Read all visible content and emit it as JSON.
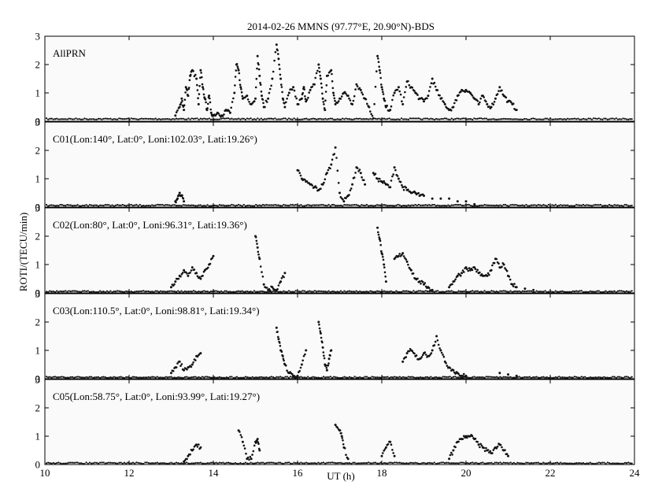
{
  "chart_data": {
    "type": "scatter",
    "title": "2014-02-26  MMNS (97.77°E, 20.90°N)-BDS",
    "xlabel": "UT (h)",
    "ylabel": "ROTI/(TECU/min)",
    "xlim": [
      10,
      24
    ],
    "ylim": [
      0,
      3
    ],
    "x_ticks": [
      10,
      12,
      14,
      16,
      18,
      20,
      22,
      24
    ],
    "y_ticks": [
      0,
      1,
      2,
      3
    ],
    "point_color": "#111111",
    "panels": [
      {
        "label": "AllPRN",
        "series": [
          {
            "baseline": 0.08,
            "x": [
              13.1,
              13.2,
              13.25,
              13.3,
              13.35,
              13.4,
              13.45,
              13.5,
              13.6,
              13.65,
              13.7,
              13.75,
              13.8,
              13.85,
              13.9,
              13.95,
              14.0,
              14.1,
              14.2,
              14.3,
              14.4,
              14.5,
              14.55,
              14.6,
              14.65,
              14.7,
              14.8,
              14.9,
              15.0,
              15.05,
              15.1,
              15.15,
              15.2,
              15.3,
              15.4,
              15.5,
              15.55,
              15.6,
              15.65,
              15.7,
              15.8,
              15.9,
              16.0,
              16.1,
              16.15,
              16.2,
              16.3,
              16.4,
              16.5,
              16.55,
              16.6,
              16.65,
              16.7,
              16.8,
              16.85,
              16.9,
              17.0,
              17.1,
              17.2,
              17.3,
              17.4,
              17.5,
              17.6,
              17.7,
              17.8,
              17.9,
              17.95,
              18.0,
              18.05,
              18.1,
              18.2,
              18.3,
              18.4,
              18.5,
              18.6,
              18.7,
              18.8,
              18.9,
              19.0,
              19.1,
              19.2,
              19.3,
              19.4,
              19.5,
              19.6,
              19.7,
              19.8,
              19.9,
              20.0,
              20.1,
              20.2,
              20.3,
              20.4,
              20.5,
              20.6,
              20.7,
              20.8,
              20.9,
              21.0,
              21.1,
              21.2
            ],
            "y": [
              0.2,
              0.5,
              0.8,
              0.4,
              1.2,
              0.9,
              1.6,
              1.8,
              1.5,
              0.6,
              1.8,
              1.2,
              0.8,
              0.4,
              0.9,
              0.3,
              0.2,
              0.3,
              0.2,
              0.4,
              0.3,
              1.0,
              2.0,
              1.8,
              1.2,
              0.8,
              0.9,
              0.6,
              0.8,
              2.3,
              1.6,
              0.9,
              0.5,
              0.8,
              1.5,
              2.7,
              2.2,
              1.5,
              0.8,
              0.5,
              1.0,
              1.2,
              0.6,
              0.8,
              1.2,
              0.7,
              1.1,
              1.3,
              2.0,
              1.5,
              0.8,
              0.4,
              1.6,
              1.8,
              1.0,
              0.6,
              0.8,
              1.0,
              0.9,
              0.6,
              1.3,
              1.1,
              0.8,
              0.5,
              0.1,
              2.3,
              1.8,
              1.2,
              0.8,
              0.5,
              0.4,
              1.0,
              1.2,
              0.6,
              1.4,
              1.2,
              1.0,
              0.8,
              0.7,
              0.9,
              1.5,
              1.1,
              0.8,
              0.6,
              0.4,
              0.5,
              0.9,
              1.1,
              1.1,
              1.0,
              0.8,
              0.6,
              0.9,
              0.6,
              0.5,
              0.8,
              1.2,
              0.9,
              0.7,
              0.6,
              0.4
            ]
          }
        ]
      },
      {
        "label": "C01(Lon:140°, Lat:0°, Loni:102.03°, Lati:19.26°)",
        "series": [
          {
            "baseline": 0.06,
            "x": [
              13.1,
              13.15,
              13.2,
              13.25,
              13.3,
              16.0,
              16.1,
              16.2,
              16.3,
              16.4,
              16.5,
              16.6,
              16.7,
              16.8,
              16.9,
              17.0,
              17.1,
              17.2,
              17.3,
              17.4,
              17.5,
              17.6,
              17.8,
              17.9,
              18.0,
              18.1,
              18.2,
              18.3,
              18.4,
              18.5,
              18.6,
              18.7,
              18.8,
              18.9,
              19.0,
              19.2,
              19.4,
              19.6,
              19.8,
              20.0,
              20.2
            ],
            "y": [
              0.2,
              0.3,
              0.5,
              0.4,
              0.2,
              1.3,
              1.0,
              0.9,
              0.8,
              0.7,
              0.6,
              0.8,
              1.2,
              1.5,
              2.1,
              0.5,
              0.2,
              0.4,
              0.8,
              1.4,
              1.2,
              0.8,
              1.2,
              1.0,
              0.9,
              0.8,
              0.7,
              1.4,
              1.0,
              0.7,
              0.6,
              0.5,
              0.5,
              0.4,
              0.4,
              0.3,
              0.3,
              0.3,
              0.2,
              0.2,
              0.1
            ]
          }
        ]
      },
      {
        "label": "C02(Lon:80°, Lat:0°, Loni:96.31°, Lati:19.36°)",
        "series": [
          {
            "baseline": 0.05,
            "x": [
              13.0,
              13.1,
              13.2,
              13.3,
              13.4,
              13.5,
              13.6,
              13.7,
              13.8,
              13.9,
              14.0,
              15.0,
              15.05,
              15.1,
              15.2,
              15.3,
              15.4,
              15.5,
              15.6,
              15.7,
              17.9,
              17.95,
              18.0,
              18.05,
              18.1,
              18.3,
              18.4,
              18.5,
              18.6,
              18.7,
              18.8,
              18.9,
              19.0,
              19.1,
              19.2,
              19.6,
              19.7,
              19.8,
              19.9,
              20.0,
              20.1,
              20.2,
              20.3,
              20.4,
              20.5,
              20.6,
              20.7,
              20.8,
              20.9,
              21.0,
              21.1,
              21.2,
              21.4,
              21.6
            ],
            "y": [
              0.2,
              0.4,
              0.6,
              0.8,
              0.6,
              0.9,
              0.7,
              0.5,
              0.8,
              1.0,
              1.3,
              2.0,
              1.6,
              1.2,
              0.3,
              0.1,
              0.2,
              0.1,
              0.4,
              0.7,
              2.3,
              1.9,
              1.4,
              1.0,
              0.4,
              1.2,
              1.3,
              1.4,
              1.1,
              0.8,
              0.5,
              0.4,
              0.3,
              0.2,
              0.1,
              0.2,
              0.4,
              0.6,
              0.7,
              0.9,
              0.8,
              0.9,
              0.7,
              0.6,
              0.6,
              0.8,
              1.2,
              0.9,
              1.0,
              0.6,
              0.3,
              0.2,
              0.15,
              0.1
            ]
          }
        ]
      },
      {
        "label": "C03(Lon:110.5°, Lat:0°, Loni:98.81°, Lati:19.34°)",
        "series": [
          {
            "baseline": 0.05,
            "x": [
              13.0,
              13.1,
              13.2,
              13.3,
              13.4,
              13.5,
              13.6,
              13.7,
              15.5,
              15.55,
              15.6,
              15.65,
              15.7,
              15.8,
              15.9,
              16.0,
              16.1,
              16.2,
              16.5,
              16.55,
              16.6,
              16.65,
              16.7,
              16.75,
              16.8,
              18.5,
              18.6,
              18.7,
              18.8,
              18.9,
              19.0,
              19.1,
              19.2,
              19.3,
              19.4,
              19.5,
              19.6,
              19.7,
              19.8,
              19.9,
              20.0,
              20.8,
              21.0,
              21.2
            ],
            "y": [
              0.2,
              0.4,
              0.6,
              0.3,
              0.4,
              0.5,
              0.8,
              0.9,
              1.8,
              1.4,
              1.0,
              0.8,
              0.5,
              0.2,
              0.1,
              0.1,
              0.5,
              1.0,
              2.0,
              1.6,
              1.1,
              0.5,
              0.3,
              0.7,
              1.0,
              0.6,
              0.9,
              1.0,
              0.8,
              0.7,
              0.9,
              0.8,
              1.0,
              1.5,
              1.0,
              0.6,
              0.4,
              0.3,
              0.2,
              0.1,
              0.1,
              0.2,
              0.15,
              0.1
            ]
          }
        ]
      },
      {
        "label": "C05(Lon:58.75°, Lat:0°, Loni:93.99°, Lati:19.27°)",
        "series": [
          {
            "baseline": 0.05,
            "x": [
              13.3,
              13.4,
              13.5,
              13.6,
              13.7,
              14.6,
              14.7,
              14.8,
              14.9,
              15.0,
              15.05,
              15.1,
              16.9,
              17.0,
              17.05,
              17.1,
              17.2,
              18.0,
              18.1,
              18.2,
              18.3,
              19.6,
              19.7,
              19.8,
              19.9,
              20.0,
              20.1,
              20.2,
              20.3,
              20.4,
              20.5,
              20.6,
              20.7,
              20.8,
              20.9,
              21.0
            ],
            "y": [
              0.1,
              0.3,
              0.5,
              0.7,
              0.6,
              1.2,
              0.8,
              0.2,
              0.2,
              0.8,
              0.9,
              0.5,
              1.4,
              1.2,
              1.0,
              0.6,
              0.2,
              0.3,
              0.6,
              0.8,
              0.3,
              0.2,
              0.5,
              0.8,
              0.9,
              1.0,
              1.0,
              0.9,
              0.7,
              0.6,
              0.5,
              0.4,
              0.6,
              0.7,
              0.5,
              0.3
            ]
          }
        ]
      }
    ]
  }
}
